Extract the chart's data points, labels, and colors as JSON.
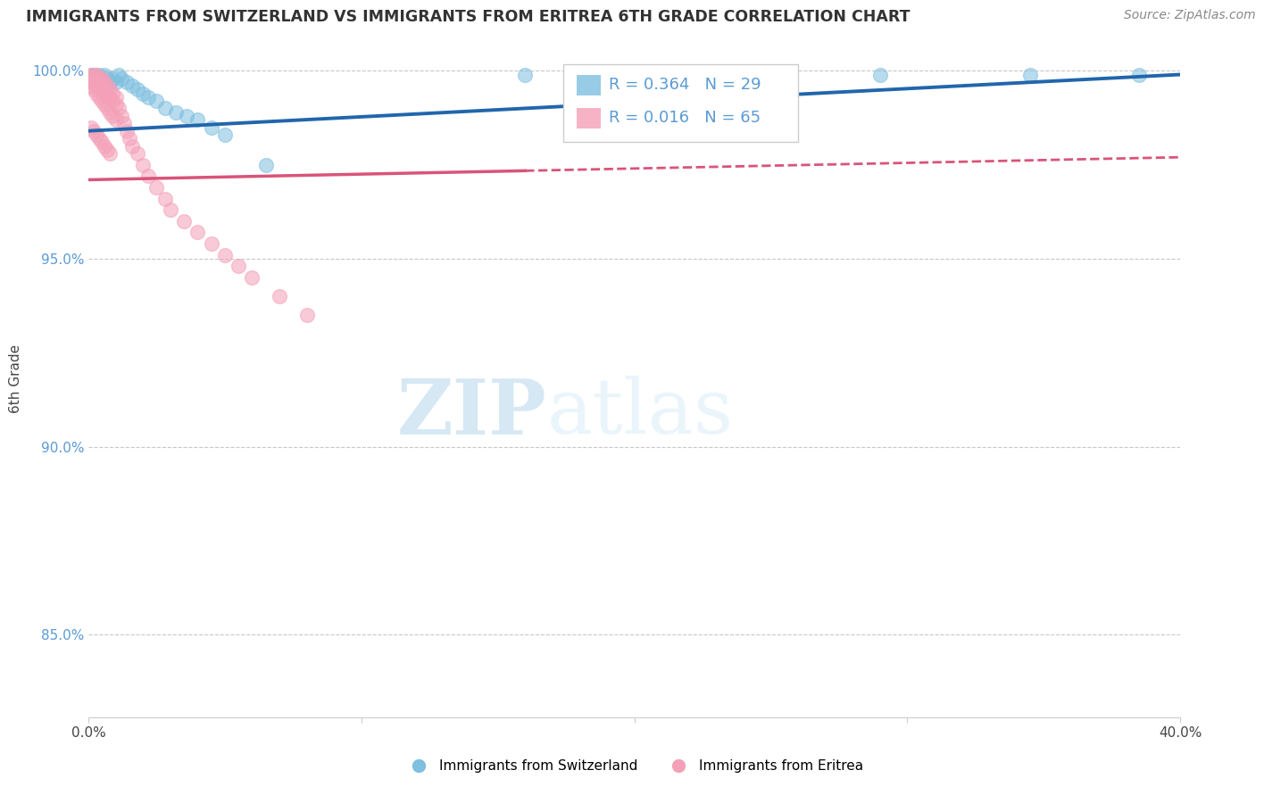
{
  "title": "IMMIGRANTS FROM SWITZERLAND VS IMMIGRANTS FROM ERITREA 6TH GRADE CORRELATION CHART",
  "source": "Source: ZipAtlas.com",
  "ylabel": "6th Grade",
  "r_switzerland": 0.364,
  "n_switzerland": 29,
  "r_eritrea": 0.016,
  "n_eritrea": 65,
  "color_switzerland": "#7fbfdf",
  "color_eritrea": "#f4a0b8",
  "color_trendline_switzerland": "#2166ac",
  "color_trendline_eritrea": "#d9547a",
  "xlim": [
    0.0,
    0.4
  ],
  "ylim": [
    0.828,
    1.008
  ],
  "yticks": [
    0.85,
    0.9,
    0.95,
    1.0
  ],
  "ytick_labels": [
    "85.0%",
    "90.0%",
    "95.0%",
    "100.0%"
  ],
  "xticks": [
    0.0,
    0.1,
    0.2,
    0.3,
    0.4
  ],
  "xtick_labels": [
    "0.0%",
    "",
    "",
    "",
    "40.0%"
  ],
  "watermark_zip": "ZIP",
  "watermark_atlas": "atlas",
  "sw_trend_x0": 0.0,
  "sw_trend_y0": 0.984,
  "sw_trend_x1": 0.4,
  "sw_trend_y1": 0.999,
  "er_trend_x0": 0.0,
  "er_trend_y0": 0.971,
  "er_trend_x1": 0.4,
  "er_trend_y1": 0.977,
  "er_trend_solid_end": 0.16,
  "sw_x": [
    0.001,
    0.002,
    0.003,
    0.004,
    0.005,
    0.006,
    0.007,
    0.008,
    0.009,
    0.01,
    0.011,
    0.012,
    0.014,
    0.016,
    0.018,
    0.02,
    0.022,
    0.025,
    0.028,
    0.032,
    0.036,
    0.04,
    0.045,
    0.05,
    0.065,
    0.16,
    0.29,
    0.345,
    0.385
  ],
  "sw_y": [
    0.999,
    0.999,
    0.998,
    0.999,
    0.998,
    0.999,
    0.998,
    0.997,
    0.998,
    0.997,
    0.999,
    0.998,
    0.997,
    0.996,
    0.995,
    0.994,
    0.993,
    0.992,
    0.99,
    0.989,
    0.988,
    0.987,
    0.985,
    0.983,
    0.975,
    0.999,
    0.999,
    0.999,
    0.999
  ],
  "er_x": [
    0.001,
    0.001,
    0.001,
    0.002,
    0.002,
    0.002,
    0.003,
    0.003,
    0.003,
    0.004,
    0.004,
    0.004,
    0.005,
    0.005,
    0.005,
    0.006,
    0.006,
    0.006,
    0.007,
    0.007,
    0.007,
    0.008,
    0.008,
    0.009,
    0.009,
    0.01,
    0.01,
    0.011,
    0.012,
    0.013,
    0.014,
    0.015,
    0.016,
    0.018,
    0.02,
    0.022,
    0.025,
    0.028,
    0.03,
    0.035,
    0.04,
    0.045,
    0.05,
    0.055,
    0.06,
    0.07,
    0.08,
    0.001,
    0.002,
    0.003,
    0.004,
    0.005,
    0.006,
    0.007,
    0.008,
    0.009,
    0.01,
    0.001,
    0.002,
    0.003,
    0.004,
    0.005,
    0.006,
    0.007,
    0.008
  ],
  "er_y": [
    0.999,
    0.998,
    0.997,
    0.999,
    0.998,
    0.997,
    0.999,
    0.997,
    0.996,
    0.998,
    0.997,
    0.996,
    0.998,
    0.996,
    0.995,
    0.997,
    0.995,
    0.994,
    0.996,
    0.994,
    0.993,
    0.995,
    0.993,
    0.994,
    0.992,
    0.993,
    0.991,
    0.99,
    0.988,
    0.986,
    0.984,
    0.982,
    0.98,
    0.978,
    0.975,
    0.972,
    0.969,
    0.966,
    0.963,
    0.96,
    0.957,
    0.954,
    0.951,
    0.948,
    0.945,
    0.94,
    0.935,
    0.996,
    0.995,
    0.994,
    0.993,
    0.992,
    0.991,
    0.99,
    0.989,
    0.988,
    0.987,
    0.985,
    0.984,
    0.983,
    0.982,
    0.981,
    0.98,
    0.979,
    0.978
  ]
}
